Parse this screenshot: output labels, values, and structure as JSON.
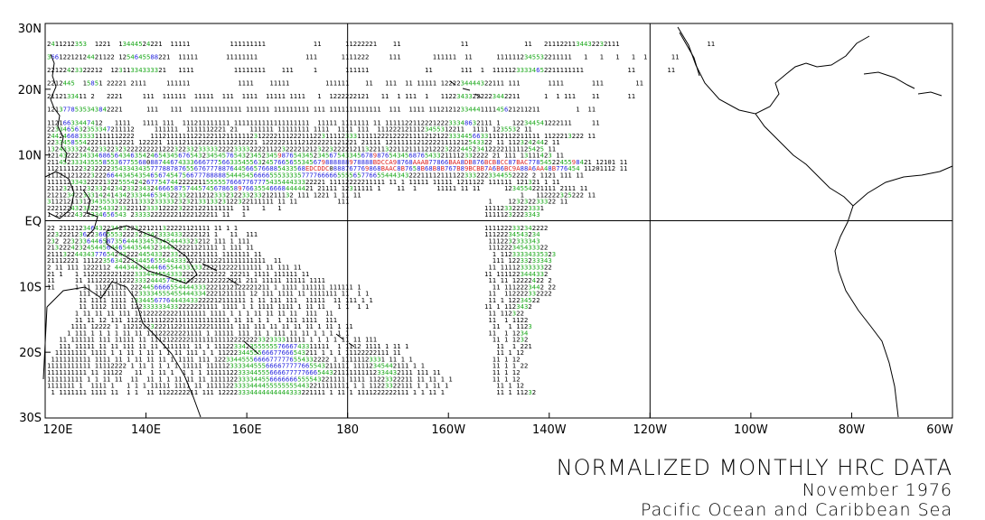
{
  "title": "NORMALIZED MONTHLY HRC DATA",
  "date": "November 1976",
  "region": "Pacific Ocean and Caribbean Sea",
  "chart_data": {
    "type": "heatmap",
    "x_range": [
      120,
      300
    ],
    "y_range": [
      -30,
      30
    ],
    "x_ticks": [
      {
        "lon": 120,
        "label": "120E"
      },
      {
        "lon": 140,
        "label": "140E"
      },
      {
        "lon": 160,
        "label": "160E"
      },
      {
        "lon": 180,
        "label": "180"
      },
      {
        "lon": 200,
        "label": "160W"
      },
      {
        "lon": 220,
        "label": "140W"
      },
      {
        "lon": 240,
        "label": "120W"
      },
      {
        "lon": 260,
        "label": "100W"
      },
      {
        "lon": 280,
        "label": "80W"
      },
      {
        "lon": 300,
        "label": "60W"
      }
    ],
    "y_ticks": [
      {
        "lat": 30,
        "label": "30N"
      },
      {
        "lat": 20,
        "label": "20N"
      },
      {
        "lat": 10,
        "label": "10N"
      },
      {
        "lat": 0,
        "label": "EQ"
      },
      {
        "lat": -10,
        "label": "10S"
      },
      {
        "lat": -20,
        "label": "20S"
      },
      {
        "lat": -30,
        "label": "30S"
      }
    ],
    "grid_lines": {
      "lon": [
        180,
        240
      ],
      "lat": [
        0
      ]
    },
    "value_colors": {
      "1": "#000000",
      "2": "#000000",
      "3": "#1aa81a",
      "4": "#1aa81a",
      "5": "#1aa81a",
      "6": "#2222dd",
      "7": "#2222dd",
      "8": "#2222dd",
      "9": "#dd2222",
      "A": "#dd2222",
      "B": "#dd2222",
      "C": "#dd2222",
      "D": "#dd2222",
      "E": "#dd2222"
    },
    "cells_note": "HRC values 1-E per grid cell; rows listed from north to south",
    "rows": [
      {
        "lat": 27,
        "text": "2411212353  1221  13444524221  11111          111111111            11      11222221    11               11              11   2111221134432232111                      11"
      },
      {
        "lat": 25,
        "text": "36612212124421122 1254645588221  11111       11111111            111      1111222     111        111111  11      1111112345532211111   1   1   1   1  1      11"
      },
      {
        "lat": 23,
        "text": "22122423322212  12311334333321   1111          11111111    111     1       111111              11       111  1  11111233334652211111111           11        11"
      },
      {
        "lat": 21,
        "text": "2212445  15851 22221 2111     111111            1111    11111         111111    11   111  11 11111 1222234444322111 111       1111       111        11"
      },
      {
        "lat": 19,
        "text": "2112133411 2   2221     111  111111  11111  111  1111  11111 1111   1  1222222121   11  1 111  1   11223433222223442211      1  1 111    11       11"
      },
      {
        "lat": 17,
        "text": "1213778535343842221      111   111  1111111111111 111111 111111111 111 1111111111111  111  1111 1112121233444111145621211211         1  11"
      },
      {
        "lat": 15,
        "text": "11216633447412   1111   1111 111  111211111111 1111111111111111111  11111 1111111 11 111112211222122233348632111 1   122344541222111     11"
      },
      {
        "lat": 14,
        "text": "2233465632353347211112     111111  1111112221 21   111111 11111111 1111  1111 111  1112221211123455312211  1111 1235532 11"
      },
      {
        "lat": 13,
        "text": "2442466833331111112222    11121111111221221121111112312222111222111223111123331111122212222111121212233344566331112112211111 1122213222 11"
      },
      {
        "lat": 12,
        "text": "2233458554222111112221 122221 11112111222221112212221 122222111121222221121221 21111 121111112122221111212543322 11 1123242442 11"
      },
      {
        "lat": 11,
        "text": "13243333224223322323222222221222322332333332222333322221122322221212322322221211322113221121111212223222445234122221111125425 11"
      },
      {
        "lat": 10,
        "text": "121432223433468656434635424654345676543234545765432345234598765434523456754334567898765434568765433211112332222 21 111 13111423 11"
      },
      {
        "lat": 9,
        "text": "2114523334355585536775568088744674333666777566335455632457665655345679888888978888BDCCA98768AAAB77866BAA8DB876BCB8CC87BAC7785452245598421 12101 11"
      },
      {
        "lat": 8,
        "text": "11211112232322223543343435777887876556767778876445665766885433568EDCDDC0888767769868BAAC8B7658B68B8B767B89BCBB7A6B6BC9A88A6AA48B776454 11201112 11"
      },
      {
        "lat": 7,
        "text": "1112112122232226644345435465674547566777888885444545666655533335777766666555565776655444343222111121111223332223344552222 2 1121 111 11"
      },
      {
        "lat": 6,
        "text": "1111123343222213225554242677547442222211555557666776777543544433322221 11112222211111 11 1 11111 11111 1211122 111111 121321 1 11"
      },
      {
        "lat": 5,
        "text": "2112321112323324234233234324666587574457456786589766355466684444421 21111 12311111 1    11  1     11111 11 11      1234554221111 2111 11"
      },
      {
        "lat": 4,
        "text": "21212342233314241434233344653432233221121233323223323321211132 111 1221 1 11 11                                        1   112222325222 11"
      },
      {
        "lat": 3,
        "text": "311212113123435533222113332333332323213313323122322111111 11 11          111                                   1    123232233322 11"
      },
      {
        "lat": 2,
        "text": "22212243233225433233221123331222232221221111111  11   1   1                                                   111123322223331"
      },
      {
        "lat": 1,
        "text": "1 221224322334656543 2333322222221222122211 11   1                                                            11111232223343"
      },
      {
        "lat": -1,
        "text": "22 21121234643223423223221211322221121111 11 1 1                                                              1111222332342222"
      },
      {
        "lat": -2,
        "text": "22322212362236655532223233423334332222121 1   11  111                                                         11122234543234"
      },
      {
        "lat": -3,
        "text": "232 2232336446587356444334533454443323212 111 1 111                                                            1112232333343"
      },
      {
        "lat": -4,
        "text": "2132224232454456446544354432344422221121111 1 111 11                                                           111222345433322"
      },
      {
        "lat": -5,
        "text": "2111322443437765424322244543322332212211111 1111111 11                                                          1 11233334335323"
      },
      {
        "lat": -6,
        "text": "21112221 1112235634223344565554433322121112211111111111  11                                                     111 12233233343"
      },
      {
        "lat": -7,
        "text": "2 11 111 1222112 4443443344466554433333222212222111111 11 111 11                                               11 1111233333322"
      },
      {
        "lat": -8,
        "text": "21 1   1 112222222122233344455433322212222222 22211 1111 111111 11                                            11 1111223444332"
      },
      {
        "lat": -9,
        "text": "11     11 111222211222333244457433322222122222221 211 11111 11111 1111                                         11 11 12222422 2"
      },
      {
        "lat": -10,
        "text": "11     1 11 11221111 22244566665544443332221212122221211 1 1111 111111 111111 1                                 11 1112223442 22"
      },
      {
        "lat": -11,
        "text": "        111 11211111 12333345554554443342221211111 12 111 1111 11 1111111 11  1 1                              11  112222332222"
      },
      {
        "lat": -12,
        "text": "        11 1111 1111 13344567764443433222212111111 1 11 111 111  11111  11 111 1 1                             11 1 12234522"
      },
      {
        "lat": -13,
        "text": "        11 1112 1111 1223333334332222221111 1111 1 1 1111 1111 1 11 11   1 1  1 1                             11 1 1123432"
      },
      {
        "lat": -14,
        "text": "       1 11 11 11 111 121222222221111111 1111 1 1 1 11 11 11 11  111  11                                       11 112322 "
      },
      {
        "lat": -15,
        "text": "       11 11 12 111 11221111122211111111111111 11 11 1 1  1 111 1111  111                                      11  1 1122"
      },
      {
        "lat": -16,
        "text": "      1111 12222 1 1121212322211221111222111111 111 111 11 11 11 11 1 11 1 11                                   11  1 1123"
      },
      {
        "lat": -17,
        "text": "     1 111 1 1 1 1 11 11 11122222221111 1 11111 111 11 1 111 11 11 1 1 1 1 1                                   11  1 1234"
      },
      {
        "lat": -18,
        "text": "   11 111111 111 11111 11 111212222211111111112222222332333311111 1 1 1 1 11 11 111                             11 1 1232"
      },
      {
        "lat": -19,
        "text": "   111 11111 11 11 111 11 11 1111111 11 1 11122334235555557666743311111  1 1112 1111 1 11 1                      11  1 221"
      },
      {
        "lat": -20,
        "text": "  11111111 1111 1 1 11 1 11 1 1 11 111 1 1 1122234455566677666543211 1 1 1 11122222111 11                        11 1 12"
      },
      {
        "lat": -21,
        "text": " 1111111111 1111 11 1 11 11 11 1 1111 111 12233445556666777776554332222 1 11111123331 11 1 1                    11 1 12"
      },
      {
        "lat": -22,
        "text": "11111111111 11112222 1 11 1 1 1 1 11111 111112333344555666677777665543211111 11112345442111 1 1                 11 1 1 22"
      },
      {
        "lat": -23,
        "text": "1111111111 11 11122   11  1 11 1  1 1 1 1111112233344555666677777666544321111111112334432111 111 11             11 1 12"
      },
      {
        "lat": -24,
        "text": "111111111 1 1 11 11  11  11 1 1 11 11 11 1111122333344556666666555543221111 1111 11223322211 11 11 1 1          11 1 12"
      },
      {
        "lat": -25,
        "text": "1111111 1  1111 1   1 1 1 11111 1111 11 111112233334444555555554432211111111 1 1 11223322111 1 1 11 1            11 1 12"
      },
      {
        "lat": -26,
        "text": " 1 1111111 1111 11  1 1  11 1122222211 111 122223334444444444333221111 1 11 1 1111222222111 1 1 11 1             11 1 11232"
      }
    ]
  }
}
